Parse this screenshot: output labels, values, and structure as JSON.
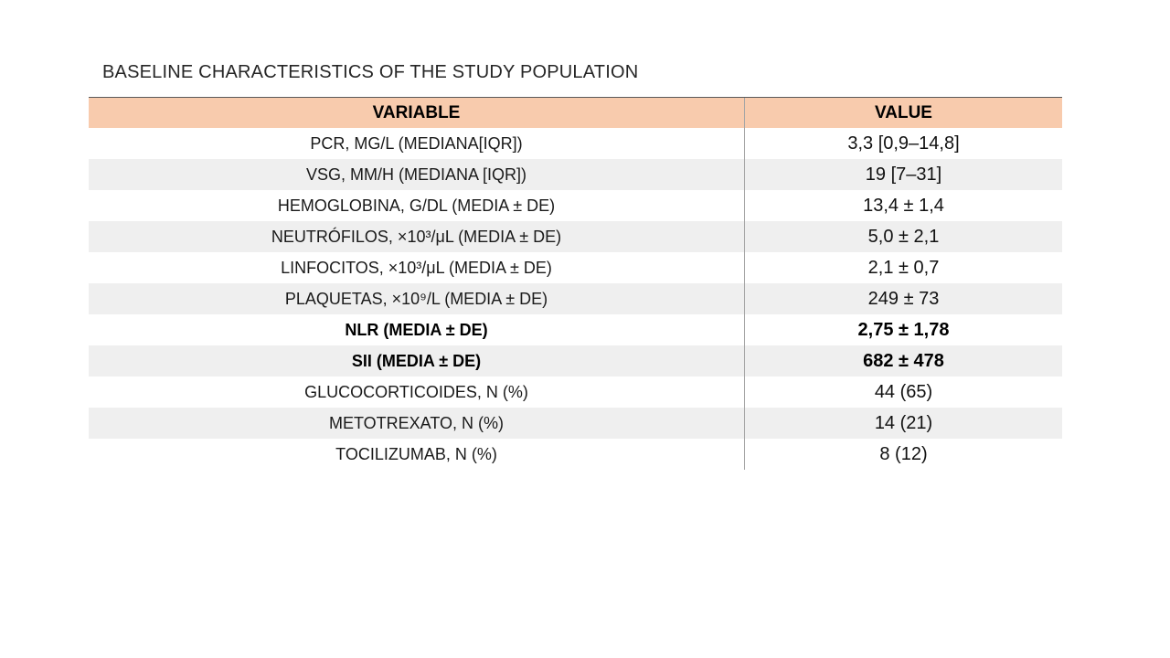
{
  "slide": {
    "title": "BASELINE CHARACTERISTICS OF THE STUDY POPULATION"
  },
  "colors": {
    "header_bg": "#F8CBAD",
    "stripe_bg": "#EFEFEF",
    "divider": "#A6A6A6",
    "top_border": "#595959"
  },
  "table": {
    "headers": [
      "VARIABLE",
      "VALUE"
    ],
    "rows": [
      {
        "variable": "PCR, MG/L (MEDIANA[IQR])",
        "value": "3,3 [0,9–14,8]"
      },
      {
        "variable": "VSG, MM/H (MEDIANA [IQR])",
        "value": "19 [7–31]"
      },
      {
        "variable": "HEMOGLOBINA, G/DL (MEDIA ± DE)",
        "value": "13,4 ± 1,4"
      },
      {
        "variable": "NEUTRÓFILOS, ×10³/μL (MEDIA ± DE)",
        "value": "5,0 ± 2,1"
      },
      {
        "variable": "LINFOCITOS, ×10³/μL (MEDIA ± DE)",
        "value": "2,1 ± 0,7"
      },
      {
        "variable": "PLAQUETAS, ×10⁹/L (MEDIA ± DE)",
        "value": "249 ± 73"
      },
      {
        "variable": "NLR (MEDIA ± DE)",
        "value": "2,75 ± 1,78"
      },
      {
        "variable": "SII (MEDIA ± DE)",
        "value": "682 ± 478"
      },
      {
        "variable": "GLUCOCORTICOIDES, N (%)",
        "value": "44 (65)"
      },
      {
        "variable": "METOTREXATO, N (%)",
        "value": "14 (21)"
      },
      {
        "variable": "TOCILIZUMAB, N (%)",
        "value": "8 (12)"
      }
    ]
  }
}
